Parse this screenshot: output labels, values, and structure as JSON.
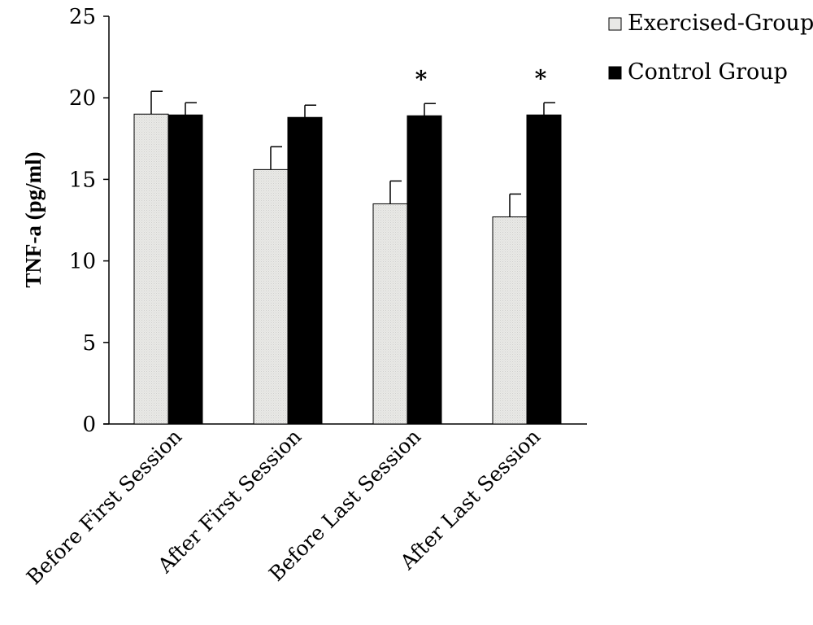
{
  "chart_data": {
    "type": "bar",
    "categories": [
      "Before First Session",
      "After First Session",
      "Before Last Session",
      "After Last Session"
    ],
    "series": [
      {
        "name": "Exercised-Group",
        "color": "#e8e8e6",
        "values": [
          19.0,
          15.6,
          13.5,
          12.7
        ],
        "errors": [
          1.4,
          1.4,
          1.4,
          1.4
        ]
      },
      {
        "name": "Control Group",
        "color": "#000000",
        "values": [
          18.95,
          18.8,
          18.9,
          18.95
        ],
        "errors": [
          0.75,
          0.75,
          0.75,
          0.75
        ]
      }
    ],
    "significance": [
      "",
      "",
      "*",
      "*"
    ],
    "ylabel": "TNF-a (pg/ml)",
    "xlabel": "",
    "ylim": [
      0,
      25
    ],
    "yticks": [
      0,
      5,
      10,
      15,
      20,
      25
    ],
    "grid": false,
    "legend_position": "top-right"
  }
}
